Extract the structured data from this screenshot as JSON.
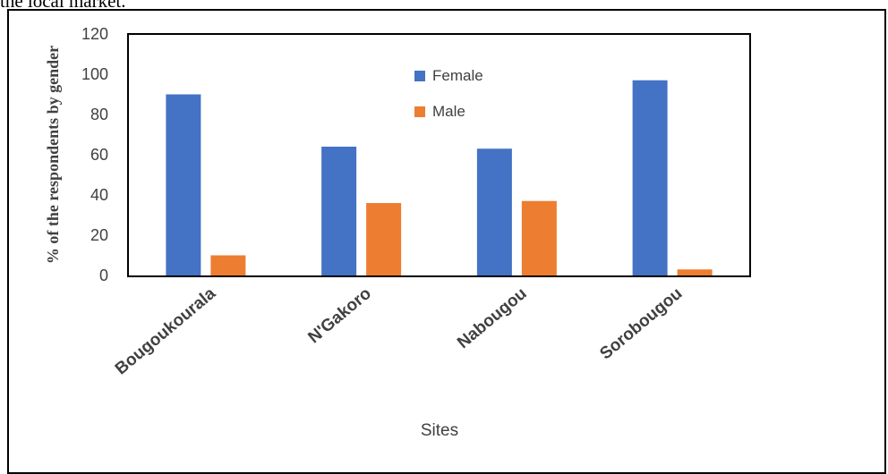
{
  "page": {
    "caption_fragment": "the local market."
  },
  "chart_data": {
    "type": "bar",
    "categories": [
      "Bougoukourala",
      "N'Gakoro",
      "Nabougou",
      "Sorobougou"
    ],
    "series": [
      {
        "name": "Female",
        "values": [
          90,
          64,
          63,
          97
        ],
        "color": "#4472C4"
      },
      {
        "name": "Male",
        "values": [
          10,
          36,
          37,
          3
        ],
        "color": "#ED7D31"
      }
    ],
    "xlabel": "Sites",
    "ylabel": "% of the respondents by gender",
    "ylim": [
      0,
      120
    ],
    "yticks": [
      0,
      20,
      40,
      60,
      80,
      100,
      120
    ],
    "grid": false,
    "legend_position": "top-center"
  }
}
